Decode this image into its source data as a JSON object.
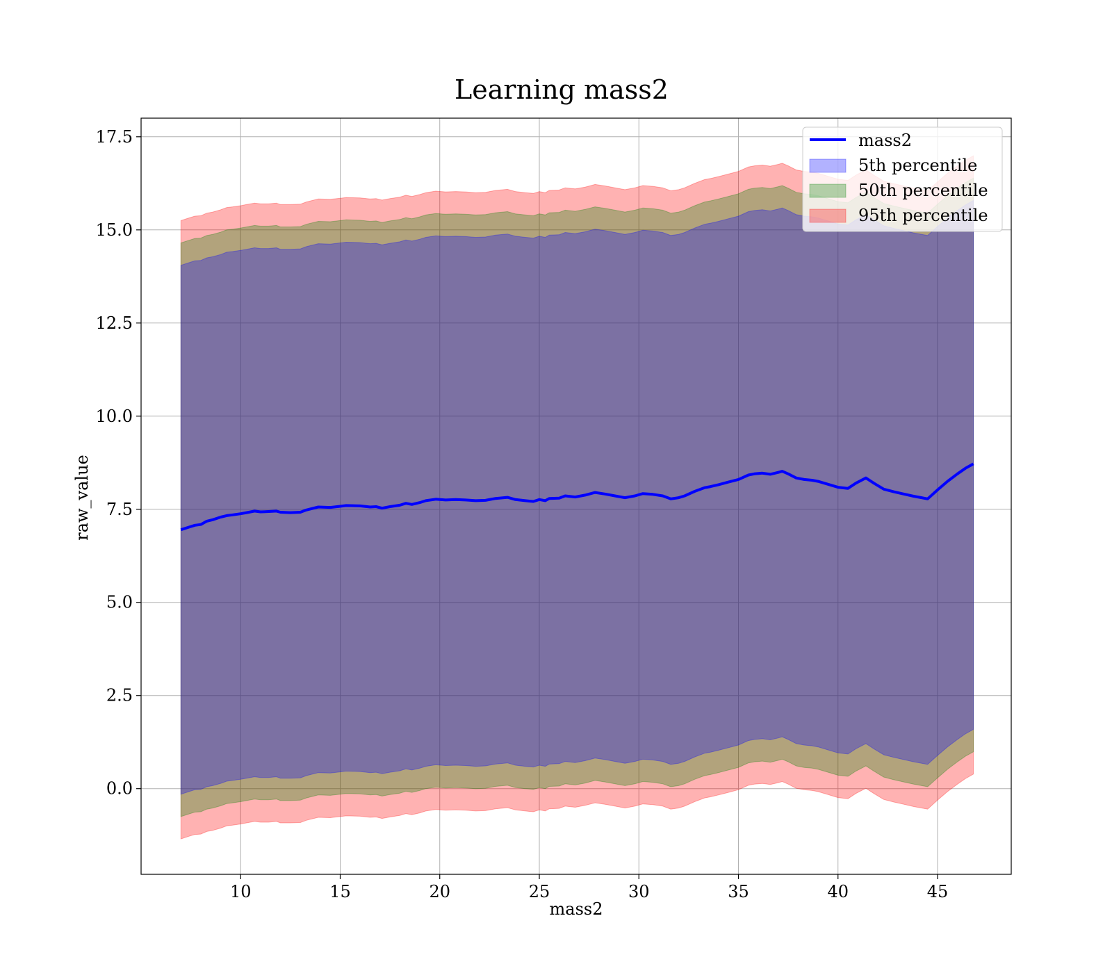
{
  "chart_data": {
    "type": "line",
    "title": "Learning mass2",
    "xlabel": "mass2",
    "ylabel": "raw_value",
    "xlim": [
      5,
      48.7
    ],
    "ylim": [
      -2.3,
      18.0
    ],
    "xticks": [
      10,
      15,
      20,
      25,
      30,
      35,
      40,
      45
    ],
    "xtick_labels": [
      "10",
      "15",
      "20",
      "25",
      "30",
      "35",
      "40",
      "45"
    ],
    "yticks": [
      0.0,
      2.5,
      5.0,
      7.5,
      10.0,
      12.5,
      15.0,
      17.5
    ],
    "ytick_labels": [
      "0.0",
      "2.5",
      "5.0",
      "7.5",
      "10.0",
      "12.5",
      "15.0",
      "17.5"
    ],
    "grid": true,
    "legend_position": "top-right",
    "legend": [
      "mass2",
      "5th percentile",
      "50th percentile",
      "95th percentile"
    ],
    "colors": {
      "line": "#0000ff",
      "p5_fill": "#0000ff",
      "p50_fill": "#008000",
      "p95_fill": "#ff0000",
      "grid": "#b0b0b0"
    },
    "x": [
      7.0,
      7.4,
      7.7,
      8.0,
      8.3,
      8.6,
      9.0,
      9.3,
      9.6,
      10.0,
      10.3,
      10.7,
      11.0,
      11.4,
      11.8,
      12.0,
      12.5,
      13.0,
      13.3,
      13.9,
      14.5,
      15.0,
      15.3,
      16.0,
      16.5,
      16.8,
      17.1,
      17.5,
      18.0,
      18.3,
      18.6,
      19.0,
      19.3,
      19.8,
      20.3,
      20.8,
      21.3,
      21.8,
      22.3,
      22.8,
      23.4,
      23.8,
      24.3,
      24.7,
      25.0,
      25.3,
      25.5,
      26.0,
      26.3,
      26.8,
      27.3,
      27.8,
      28.3,
      28.8,
      29.3,
      29.8,
      30.2,
      30.7,
      31.2,
      31.6,
      32.0,
      32.3,
      32.8,
      33.3,
      33.6,
      34.0,
      34.5,
      35.0,
      35.5,
      35.8,
      36.2,
      36.6,
      37.0,
      37.2,
      37.5,
      37.9,
      38.3,
      38.7,
      39.0,
      39.5,
      40.0,
      40.5,
      40.9,
      41.4,
      41.8,
      42.3,
      42.8,
      43.3,
      43.8,
      44.2,
      44.5,
      45.0,
      45.5,
      46.0,
      46.4,
      46.8
    ],
    "series": [
      {
        "name": "mass2",
        "values": [
          6.95,
          7.02,
          7.07,
          7.09,
          7.18,
          7.22,
          7.29,
          7.33,
          7.35,
          7.38,
          7.41,
          7.45,
          7.43,
          7.44,
          7.45,
          7.42,
          7.41,
          7.42,
          7.48,
          7.56,
          7.55,
          7.58,
          7.6,
          7.59,
          7.56,
          7.57,
          7.53,
          7.57,
          7.61,
          7.66,
          7.63,
          7.68,
          7.73,
          7.77,
          7.75,
          7.76,
          7.75,
          7.73,
          7.74,
          7.79,
          7.82,
          7.76,
          7.73,
          7.71,
          7.76,
          7.73,
          7.79,
          7.8,
          7.86,
          7.83,
          7.88,
          7.95,
          7.91,
          7.86,
          7.81,
          7.86,
          7.92,
          7.9,
          7.86,
          7.78,
          7.81,
          7.86,
          7.98,
          8.08,
          8.11,
          8.16,
          8.23,
          8.3,
          8.42,
          8.45,
          8.47,
          8.44,
          8.49,
          8.52,
          8.45,
          8.34,
          8.3,
          8.28,
          8.25,
          8.17,
          8.09,
          8.06,
          8.2,
          8.34,
          8.2,
          8.04,
          7.97,
          7.91,
          7.85,
          7.81,
          7.78,
          8.02,
          8.25,
          8.45,
          8.6,
          8.72
        ]
      },
      {
        "name": "5th percentile",
        "lower": [
          -0.15,
          -0.08,
          -0.03,
          -0.02,
          0.05,
          0.08,
          0.14,
          0.2,
          0.22,
          0.25,
          0.28,
          0.32,
          0.3,
          0.3,
          0.32,
          0.28,
          0.28,
          0.29,
          0.35,
          0.43,
          0.42,
          0.45,
          0.47,
          0.46,
          0.43,
          0.44,
          0.4,
          0.44,
          0.48,
          0.53,
          0.5,
          0.55,
          0.6,
          0.64,
          0.62,
          0.63,
          0.62,
          0.6,
          0.61,
          0.66,
          0.69,
          0.63,
          0.6,
          0.58,
          0.63,
          0.6,
          0.66,
          0.67,
          0.73,
          0.7,
          0.75,
          0.82,
          0.78,
          0.73,
          0.68,
          0.73,
          0.79,
          0.77,
          0.73,
          0.65,
          0.68,
          0.73,
          0.85,
          0.95,
          0.98,
          1.03,
          1.1,
          1.17,
          1.29,
          1.32,
          1.34,
          1.31,
          1.36,
          1.39,
          1.32,
          1.21,
          1.17,
          1.15,
          1.12,
          1.04,
          0.96,
          0.93,
          1.07,
          1.21,
          1.07,
          0.91,
          0.84,
          0.78,
          0.72,
          0.68,
          0.65,
          0.89,
          1.12,
          1.32,
          1.47,
          1.59
        ],
        "upper": [
          14.05,
          14.12,
          14.17,
          14.18,
          14.25,
          14.28,
          14.34,
          14.4,
          14.42,
          14.45,
          14.48,
          14.52,
          14.5,
          14.5,
          14.52,
          14.48,
          14.48,
          14.49,
          14.55,
          14.63,
          14.62,
          14.65,
          14.67,
          14.66,
          14.63,
          14.64,
          14.6,
          14.64,
          14.68,
          14.73,
          14.7,
          14.75,
          14.8,
          14.84,
          14.82,
          14.83,
          14.82,
          14.8,
          14.81,
          14.86,
          14.89,
          14.83,
          14.8,
          14.78,
          14.83,
          14.8,
          14.86,
          14.87,
          14.93,
          14.9,
          14.95,
          15.02,
          14.98,
          14.93,
          14.88,
          14.93,
          14.99,
          14.97,
          14.93,
          14.85,
          14.88,
          14.93,
          15.05,
          15.15,
          15.18,
          15.23,
          15.3,
          15.37,
          15.49,
          15.52,
          15.54,
          15.51,
          15.56,
          15.59,
          15.52,
          15.41,
          15.37,
          15.35,
          15.32,
          15.24,
          15.16,
          15.13,
          15.27,
          15.41,
          15.27,
          15.11,
          15.04,
          14.98,
          14.92,
          14.88,
          14.85,
          15.09,
          15.32,
          15.52,
          15.67,
          15.79
        ]
      },
      {
        "name": "50th percentile",
        "lower": [
          -0.75,
          -0.68,
          -0.63,
          -0.62,
          -0.55,
          -0.52,
          -0.46,
          -0.4,
          -0.38,
          -0.35,
          -0.32,
          -0.28,
          -0.3,
          -0.3,
          -0.28,
          -0.32,
          -0.32,
          -0.31,
          -0.25,
          -0.17,
          -0.18,
          -0.15,
          -0.13,
          -0.14,
          -0.17,
          -0.16,
          -0.2,
          -0.16,
          -0.12,
          -0.07,
          -0.1,
          -0.05,
          0.0,
          0.04,
          0.02,
          0.03,
          0.02,
          0.0,
          0.01,
          0.06,
          0.09,
          0.03,
          0.0,
          -0.02,
          0.03,
          0.0,
          0.06,
          0.07,
          0.13,
          0.1,
          0.15,
          0.22,
          0.18,
          0.13,
          0.08,
          0.13,
          0.19,
          0.17,
          0.13,
          0.05,
          0.08,
          0.13,
          0.25,
          0.35,
          0.38,
          0.43,
          0.5,
          0.57,
          0.69,
          0.72,
          0.74,
          0.71,
          0.76,
          0.79,
          0.72,
          0.61,
          0.57,
          0.55,
          0.52,
          0.44,
          0.36,
          0.33,
          0.47,
          0.61,
          0.47,
          0.31,
          0.24,
          0.18,
          0.12,
          0.08,
          0.05,
          0.29,
          0.52,
          0.72,
          0.87,
          0.99
        ],
        "upper": [
          14.65,
          14.72,
          14.77,
          14.78,
          14.85,
          14.88,
          14.94,
          15.0,
          15.02,
          15.05,
          15.08,
          15.12,
          15.1,
          15.1,
          15.12,
          15.08,
          15.08,
          15.09,
          15.15,
          15.23,
          15.22,
          15.25,
          15.27,
          15.26,
          15.23,
          15.24,
          15.2,
          15.24,
          15.28,
          15.33,
          15.3,
          15.35,
          15.4,
          15.44,
          15.42,
          15.43,
          15.42,
          15.4,
          15.41,
          15.46,
          15.49,
          15.43,
          15.4,
          15.38,
          15.43,
          15.4,
          15.46,
          15.47,
          15.53,
          15.5,
          15.55,
          15.62,
          15.58,
          15.53,
          15.48,
          15.53,
          15.59,
          15.57,
          15.53,
          15.45,
          15.48,
          15.53,
          15.65,
          15.75,
          15.78,
          15.83,
          15.9,
          15.97,
          16.09,
          16.12,
          16.14,
          16.11,
          16.16,
          16.19,
          16.12,
          16.01,
          15.97,
          15.95,
          15.92,
          15.84,
          15.76,
          15.73,
          15.87,
          16.01,
          15.87,
          15.71,
          15.64,
          15.58,
          15.52,
          15.48,
          15.45,
          15.69,
          15.92,
          16.12,
          16.27,
          16.39
        ]
      },
      {
        "name": "95th percentile",
        "lower": [
          -1.35,
          -1.28,
          -1.23,
          -1.22,
          -1.15,
          -1.12,
          -1.06,
          -1.0,
          -0.98,
          -0.95,
          -0.92,
          -0.88,
          -0.9,
          -0.9,
          -0.88,
          -0.92,
          -0.92,
          -0.91,
          -0.85,
          -0.77,
          -0.78,
          -0.75,
          -0.73,
          -0.74,
          -0.77,
          -0.76,
          -0.8,
          -0.76,
          -0.72,
          -0.67,
          -0.7,
          -0.65,
          -0.6,
          -0.56,
          -0.58,
          -0.57,
          -0.58,
          -0.6,
          -0.59,
          -0.54,
          -0.51,
          -0.57,
          -0.6,
          -0.62,
          -0.57,
          -0.6,
          -0.54,
          -0.53,
          -0.47,
          -0.5,
          -0.45,
          -0.38,
          -0.42,
          -0.47,
          -0.52,
          -0.47,
          -0.41,
          -0.43,
          -0.47,
          -0.55,
          -0.52,
          -0.47,
          -0.35,
          -0.25,
          -0.22,
          -0.17,
          -0.1,
          -0.03,
          0.09,
          0.12,
          0.14,
          0.11,
          0.16,
          0.19,
          0.12,
          0.01,
          -0.03,
          -0.05,
          -0.08,
          -0.16,
          -0.24,
          -0.27,
          -0.13,
          0.01,
          -0.13,
          -0.29,
          -0.36,
          -0.42,
          -0.48,
          -0.52,
          -0.55,
          -0.31,
          -0.08,
          0.12,
          0.27,
          0.39
        ],
        "upper": [
          15.25,
          15.32,
          15.37,
          15.38,
          15.45,
          15.48,
          15.54,
          15.6,
          15.62,
          15.65,
          15.68,
          15.72,
          15.7,
          15.7,
          15.72,
          15.68,
          15.68,
          15.69,
          15.75,
          15.83,
          15.82,
          15.85,
          15.87,
          15.86,
          15.83,
          15.84,
          15.8,
          15.84,
          15.88,
          15.93,
          15.9,
          15.95,
          16.0,
          16.04,
          16.02,
          16.03,
          16.02,
          16.0,
          16.01,
          16.06,
          16.09,
          16.03,
          16.0,
          15.98,
          16.03,
          16.0,
          16.06,
          16.07,
          16.13,
          16.1,
          16.15,
          16.22,
          16.18,
          16.13,
          16.08,
          16.13,
          16.19,
          16.17,
          16.13,
          16.05,
          16.08,
          16.13,
          16.25,
          16.35,
          16.38,
          16.43,
          16.5,
          16.57,
          16.69,
          16.72,
          16.74,
          16.71,
          16.76,
          16.79,
          16.72,
          16.61,
          16.57,
          16.55,
          16.52,
          16.44,
          16.36,
          16.33,
          16.47,
          16.61,
          16.47,
          16.31,
          16.24,
          16.18,
          16.12,
          16.08,
          16.05,
          16.29,
          16.52,
          16.72,
          16.87,
          16.99
        ]
      }
    ]
  }
}
